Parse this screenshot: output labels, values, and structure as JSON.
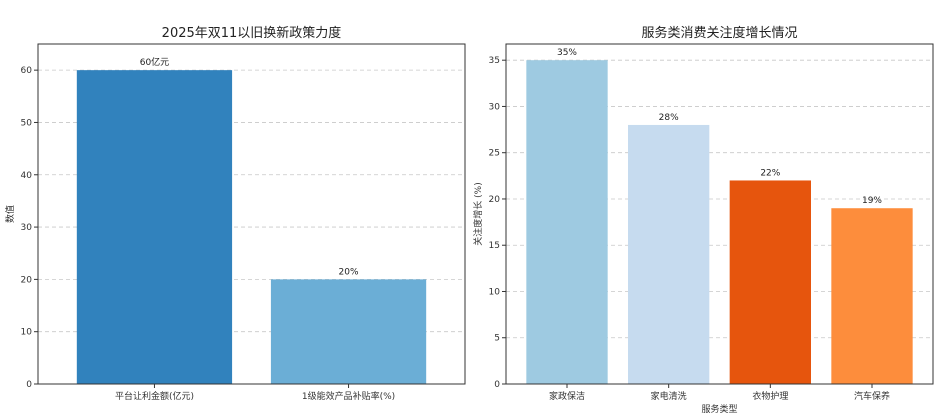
{
  "chart_data": [
    {
      "type": "bar",
      "title": "2025年双11以旧换新政策力度",
      "xlabel": "",
      "ylabel": "数值",
      "ylim": [
        0,
        65
      ],
      "yticks": [
        0,
        10,
        20,
        30,
        40,
        50,
        60
      ],
      "grid": true,
      "categories": [
        "平台让利金额(亿元)",
        "1级能效产品补贴率(%)"
      ],
      "values": [
        60,
        20
      ],
      "data_labels": [
        "60亿元",
        "20%"
      ],
      "colors": [
        "#3182bd",
        "#6baed6"
      ]
    },
    {
      "type": "bar",
      "title": "服务类消费关注度增长情况",
      "xlabel": "服务类型",
      "ylabel": "关注度增长 (%)",
      "ylim": [
        0,
        36.75
      ],
      "yticks": [
        0,
        5,
        10,
        15,
        20,
        25,
        30,
        35
      ],
      "grid": true,
      "categories": [
        "家政保洁",
        "家电清洗",
        "衣物护理",
        "汽车保养"
      ],
      "values": [
        35,
        28,
        22,
        19
      ],
      "data_labels": [
        "35%",
        "28%",
        "22%",
        "19%"
      ],
      "colors": [
        "#9ecae1",
        "#c6dbef",
        "#e6550d",
        "#fd8d3c"
      ]
    }
  ]
}
